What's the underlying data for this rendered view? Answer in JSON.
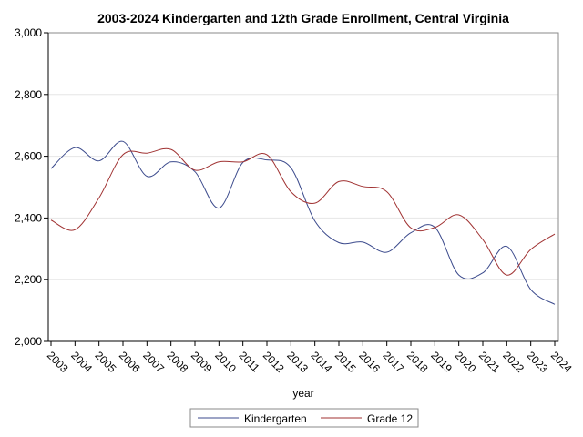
{
  "chart_data": {
    "type": "line",
    "title": "2003-2024 Kindergarten and 12th Grade Enrollment, Central Virginia",
    "xlabel": "year",
    "ylabel": "",
    "x": [
      2003,
      2004,
      2005,
      2006,
      2007,
      2008,
      2009,
      2010,
      2011,
      2012,
      2013,
      2014,
      2015,
      2016,
      2017,
      2018,
      2019,
      2020,
      2021,
      2022,
      2023,
      2024
    ],
    "x_tick_labels": [
      "2003",
      "2004",
      "2005",
      "2006",
      "2007",
      "2008",
      "2009",
      "2010",
      "2011",
      "2012",
      "2013",
      "2014",
      "2015",
      "2016",
      "2017",
      "2018",
      "2019",
      "2020",
      "2021",
      "2022",
      "2023",
      "2024"
    ],
    "ylim": [
      2000,
      3000
    ],
    "y_ticks": [
      2000,
      2200,
      2400,
      2600,
      2800,
      3000
    ],
    "y_tick_labels": [
      "2,000",
      "2,200",
      "2,400",
      "2,600",
      "2,800",
      "3,000"
    ],
    "grid": true,
    "legend_position": "bottom",
    "series": [
      {
        "name": "Kindergarten",
        "color": "#3b4a8c",
        "values": [
          2560,
          2628,
          2585,
          2648,
          2535,
          2582,
          2550,
          2432,
          2580,
          2588,
          2563,
          2390,
          2320,
          2322,
          2289,
          2352,
          2370,
          2215,
          2222,
          2308,
          2168,
          2120
        ]
      },
      {
        "name": "Grade 12",
        "color": "#a03232",
        "values": [
          2393,
          2362,
          2465,
          2605,
          2610,
          2622,
          2555,
          2582,
          2582,
          2605,
          2485,
          2448,
          2518,
          2502,
          2485,
          2368,
          2369,
          2410,
          2330,
          2215,
          2298,
          2348
        ]
      }
    ]
  }
}
